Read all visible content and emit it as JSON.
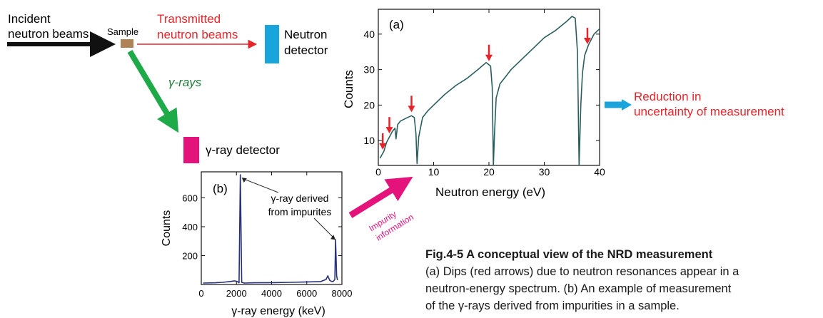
{
  "diagram": {
    "incident_label": [
      "Incident",
      "neutron beams"
    ],
    "sample_label": "Sample",
    "transmitted_label": [
      "Transmitted",
      "neutron beams"
    ],
    "neutron_detector_label": [
      "Neutron",
      "detector"
    ],
    "gamma_rays_label": "γ-rays",
    "gamma_detector_label": "γ-ray detector",
    "impurity_label": [
      "Impurity",
      "information"
    ],
    "reduction_label": [
      "Reduction in",
      "uncertainty of measurement"
    ],
    "colors": {
      "incident_arrow": "#111111",
      "transmitted": "#e8232a",
      "neutron_detector": "#1aa4dc",
      "gamma_arrow": "#1faa4a",
      "gamma_text": "#1d7a3a",
      "gamma_detector": "#e4137b",
      "sample": "#b08357",
      "impurity_arrow": "#e4137b",
      "reduction_arrow": "#1aa4dc",
      "red_arrow": "#e8232a"
    }
  },
  "chart_data": [
    {
      "type": "line",
      "panel_label": "(a)",
      "xlabel": "Neutron energy (eV)",
      "ylabel": "Counts",
      "xlim": [
        0,
        40
      ],
      "ylim": [
        3,
        47
      ],
      "xticks": [
        0,
        10,
        20,
        30,
        40
      ],
      "yticks": [
        10,
        20,
        30,
        40
      ],
      "line_color": "#2a5e5e",
      "series": [
        {
          "x": [
            0.3,
            1,
            1.5,
            2,
            2.5,
            3,
            3.2,
            3.5,
            4,
            5,
            6,
            6.5,
            6.8,
            7,
            7.3,
            8,
            9,
            10,
            12,
            14,
            16,
            18,
            19.5,
            20.3,
            20.6,
            20.8,
            21.0,
            21.3,
            22,
            23,
            24,
            26,
            28,
            30,
            32,
            34,
            35,
            35.6,
            36.0,
            36.3,
            36.6,
            36.9,
            37.3,
            38,
            39,
            40
          ],
          "y": [
            5,
            7,
            9.5,
            11,
            12.5,
            13.5,
            10.5,
            14.5,
            15.5,
            16.3,
            17,
            16.5,
            12,
            3.5,
            11,
            16.5,
            18.5,
            20,
            23,
            25.5,
            27.5,
            30,
            32,
            31,
            25,
            3,
            12,
            22,
            26,
            28,
            30,
            33,
            36,
            39,
            41,
            43.5,
            45,
            44.5,
            35,
            3,
            20,
            29,
            34,
            37,
            40,
            41.5
          ]
        }
      ],
      "dip_arrows_x": [
        0.8,
        2.0,
        6.0,
        20.0,
        37.8
      ]
    },
    {
      "type": "line",
      "panel_label": "(b)",
      "xlabel": "γ-ray energy (keV)",
      "ylabel": "Counts",
      "xlim": [
        0,
        8000
      ],
      "ylim": [
        0,
        780
      ],
      "xticks": [
        0,
        2000,
        4000,
        6000,
        8000
      ],
      "yticks": [
        200,
        400,
        600
      ],
      "line_color": "#27307a",
      "annotation": [
        "γ-ray derived",
        "from impurites"
      ],
      "series": [
        {
          "x": [
            100,
            800,
            1200,
            1600,
            1900,
            2050,
            2150,
            2223,
            2300,
            2450,
            3000,
            4000,
            5000,
            6000,
            6800,
            7100,
            7200,
            7300,
            7400,
            7500,
            7600,
            7640,
            7700,
            7750
          ],
          "y": [
            10,
            12,
            15,
            20,
            25,
            20,
            12,
            760,
            15,
            10,
            12,
            13,
            15,
            18,
            20,
            35,
            60,
            30,
            22,
            20,
            35,
            310,
            60,
            30
          ]
        }
      ]
    }
  ],
  "caption": {
    "title": "Fig.4-5 A conceptual view of the NRD measurement",
    "lines": [
      "(a) Dips (red arrows) due to neutron resonances appear in a",
      "neutron-energy spectrum. (b) An example of measurement",
      "of the γ-rays derived from impurities in a sample."
    ]
  }
}
